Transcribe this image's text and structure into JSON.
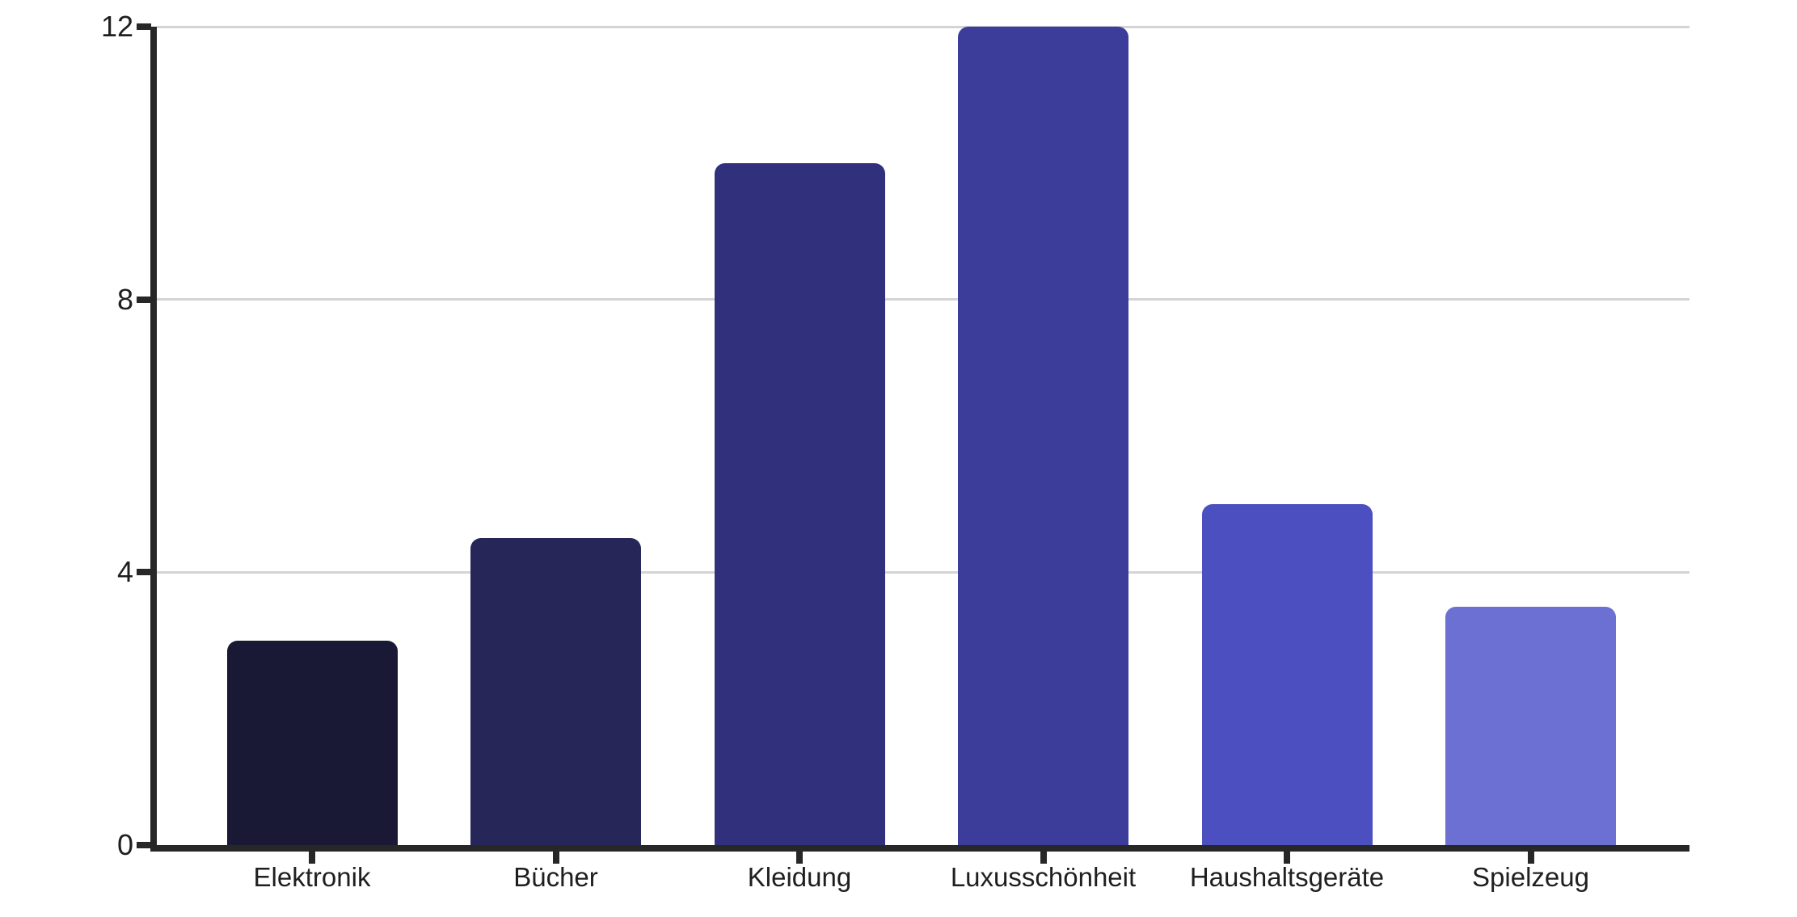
{
  "chart_data": {
    "type": "bar",
    "categories": [
      "Elektronik",
      "Bücher",
      "Kleidung",
      "Luxusschönheit",
      "Haushaltsgeräte",
      "Spielzeug"
    ],
    "values": [
      3,
      4.5,
      10,
      12,
      5,
      3.5
    ],
    "bar_colors": [
      "#191935",
      "#262659",
      "#30307c",
      "#3c3c9b",
      "#4b4fc0",
      "#6b70d2"
    ],
    "title": "",
    "xlabel": "",
    "ylabel": "",
    "ylim": [
      0,
      12
    ],
    "yticks": [
      0,
      4,
      8,
      12
    ],
    "gridlines_at": [
      4,
      8,
      12
    ],
    "grid": "horizontal",
    "legend": "none",
    "background_color": "#ffffff",
    "axis_color": "#272727",
    "gridline_color": "#d4d4d4",
    "tick_label_color": "#1f1f1f"
  }
}
